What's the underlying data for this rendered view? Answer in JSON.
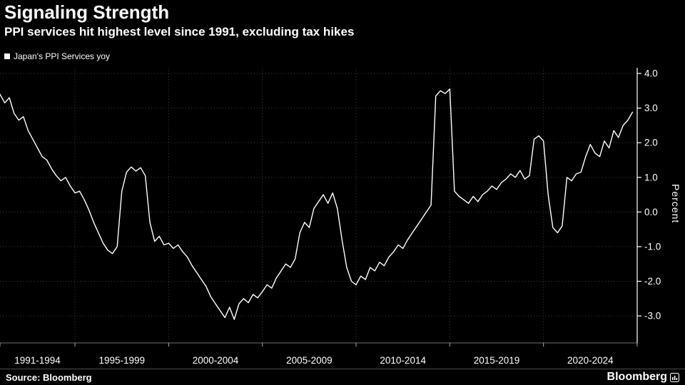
{
  "header": {
    "title": "Signaling Strength",
    "subtitle": "PPI services hit highest level since 1991, excluding tax hikes"
  },
  "legend": {
    "label": "Japan's PPI Services yoy",
    "swatch_color": "#ffffff"
  },
  "colors": {
    "background": "#000000",
    "grid": "#3b3b3b",
    "axis": "#ffffff",
    "baseline": "#6e6e6e",
    "line": "#ffffff",
    "text": "#ffffff"
  },
  "chart_data": {
    "type": "line",
    "title": "Signaling Strength",
    "subtitle": "PPI services hit highest level since 1991, excluding tax hikes",
    "xlabel": "",
    "ylabel": "Percent",
    "x_start": 1991.0,
    "x_end": 2025.0,
    "x_step": 0.25,
    "ylim": [
      -3.78,
      4.165
    ],
    "grid": true,
    "legend_position": "top-left",
    "y_ticks": [
      {
        "value": 4.0,
        "label": "4.0"
      },
      {
        "value": 3.0,
        "label": "3.0"
      },
      {
        "value": 2.0,
        "label": "2.0"
      },
      {
        "value": 1.0,
        "label": "1.0"
      },
      {
        "value": 0.0,
        "label": "0.0"
      },
      {
        "value": -1.0,
        "label": "-1.0"
      },
      {
        "value": -2.0,
        "label": "-2.0"
      },
      {
        "value": -3.0,
        "label": "-3.0"
      }
    ],
    "x_ticks": [
      {
        "label": "1991-1994",
        "center": 1993.0
      },
      {
        "label": "1995-1999",
        "center": 1997.5
      },
      {
        "label": "2000-2004",
        "center": 2002.5
      },
      {
        "label": "2005-2009",
        "center": 2007.5
      },
      {
        "label": "2010-2014",
        "center": 2012.5
      },
      {
        "label": "2015-2019",
        "center": 2017.5
      },
      {
        "label": "2020-2024",
        "center": 2022.5
      }
    ],
    "x_gridlines": [
      1995,
      2000,
      2005,
      2010,
      2015,
      2020
    ],
    "x_segment_boundaries": [
      1991,
      1995,
      2000,
      2005,
      2010,
      2015,
      2020,
      2025
    ],
    "series": [
      {
        "name": "Japan's PPI Services yoy",
        "color": "#ffffff",
        "values": [
          3.4,
          3.15,
          3.3,
          2.85,
          2.65,
          2.75,
          2.35,
          2.1,
          1.85,
          1.6,
          1.5,
          1.25,
          1.05,
          0.9,
          1.0,
          0.75,
          0.55,
          0.6,
          0.35,
          0.05,
          -0.3,
          -0.6,
          -0.9,
          -1.1,
          -1.2,
          -1.0,
          0.6,
          1.15,
          1.3,
          1.18,
          1.28,
          1.05,
          -0.3,
          -0.85,
          -0.7,
          -0.95,
          -0.9,
          -1.05,
          -0.95,
          -1.15,
          -1.3,
          -1.55,
          -1.75,
          -1.95,
          -2.15,
          -2.45,
          -2.65,
          -2.85,
          -3.05,
          -2.75,
          -3.1,
          -2.65,
          -2.5,
          -2.62,
          -2.38,
          -2.48,
          -2.3,
          -2.1,
          -2.2,
          -1.9,
          -1.7,
          -1.5,
          -1.6,
          -1.35,
          -0.6,
          -0.3,
          -0.45,
          0.1,
          0.3,
          0.5,
          0.25,
          0.55,
          0.1,
          -0.8,
          -1.6,
          -2.0,
          -2.1,
          -1.85,
          -1.95,
          -1.6,
          -1.7,
          -1.45,
          -1.55,
          -1.3,
          -1.15,
          -0.95,
          -1.05,
          -0.8,
          -0.6,
          -0.4,
          -0.2,
          0.0,
          0.2,
          3.35,
          3.5,
          3.42,
          3.55,
          0.6,
          0.45,
          0.35,
          0.25,
          0.45,
          0.3,
          0.5,
          0.6,
          0.75,
          0.65,
          0.85,
          0.95,
          1.1,
          1.0,
          1.2,
          0.95,
          1.05,
          2.1,
          2.2,
          2.05,
          0.5,
          -0.45,
          -0.6,
          -0.4,
          1.0,
          0.9,
          1.1,
          1.15,
          1.6,
          1.95,
          1.7,
          1.6,
          2.05,
          1.85,
          2.35,
          2.15,
          2.5,
          2.65,
          2.88
        ]
      }
    ]
  },
  "footer": {
    "source": "Source: Bloomberg",
    "brand": "Bloomberg"
  }
}
